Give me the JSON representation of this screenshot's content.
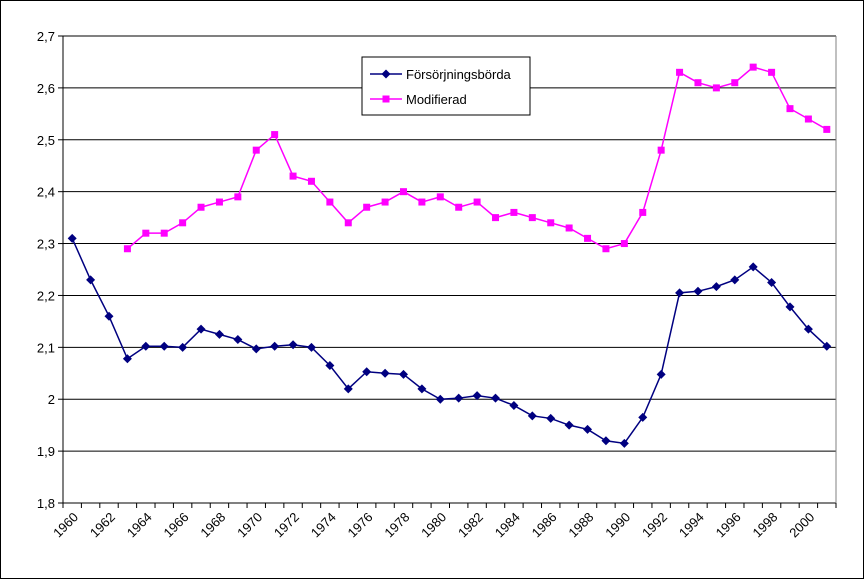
{
  "chart_data": {
    "type": "line",
    "categories": [
      "1960",
      null,
      "1962",
      null,
      "1964",
      null,
      "1966",
      null,
      "1968",
      null,
      "1970",
      null,
      "1972",
      null,
      "1974",
      null,
      "1976",
      null,
      "1978",
      null,
      "1980",
      null,
      "1982",
      null,
      "1984",
      null,
      "1986",
      null,
      "1988",
      null,
      "1990",
      null,
      "1992",
      null,
      "1994",
      null,
      "1996",
      null,
      "1998",
      null,
      "2000",
      null
    ],
    "series": [
      {
        "name": "Försörjningsbörda",
        "color": "#000080",
        "marker": "diamond",
        "values": [
          2.31,
          2.23,
          2.16,
          2.078,
          2.102,
          2.102,
          2.1,
          2.135,
          2.125,
          2.115,
          2.097,
          2.102,
          2.105,
          2.1,
          2.065,
          2.02,
          2.053,
          2.05,
          2.048,
          2.02,
          2.0,
          2.002,
          2.007,
          2.002,
          1.988,
          1.968,
          1.963,
          1.95,
          1.942,
          1.92,
          1.915,
          1.965,
          2.048,
          2.205,
          2.208,
          2.217,
          2.23,
          2.255,
          2.225,
          2.178,
          2.135,
          2.102
        ]
      },
      {
        "name": "Modifierad",
        "color": "#ff00ff",
        "marker": "square",
        "values": [
          null,
          null,
          null,
          2.29,
          2.32,
          2.32,
          2.34,
          2.37,
          2.38,
          2.39,
          2.48,
          2.51,
          2.43,
          2.42,
          2.38,
          2.34,
          2.37,
          2.38,
          2.4,
          2.38,
          2.39,
          2.37,
          2.38,
          2.35,
          2.36,
          2.35,
          2.34,
          2.33,
          2.31,
          2.29,
          2.3,
          2.36,
          2.48,
          2.63,
          2.61,
          2.6,
          2.61,
          2.64,
          2.63,
          2.56,
          2.54,
          2.52
        ]
      }
    ],
    "ylim": [
      1.8,
      2.7
    ],
    "yticks": [
      {
        "value": 1.8,
        "label": "1,8"
      },
      {
        "value": 1.9,
        "label": "1,9"
      },
      2,
      {
        "value": 2.1,
        "label": "2,1"
      },
      {
        "value": 2.2,
        "label": "2,2"
      },
      {
        "value": 2.3,
        "label": "2,3"
      },
      {
        "value": 2.4,
        "label": "2,4"
      },
      {
        "value": 2.5,
        "label": "2,5"
      },
      {
        "value": 2.6,
        "label": "2,6"
      },
      {
        "value": 2.7,
        "label": "2,7"
      }
    ],
    "grid": true,
    "legend": "top-center"
  }
}
